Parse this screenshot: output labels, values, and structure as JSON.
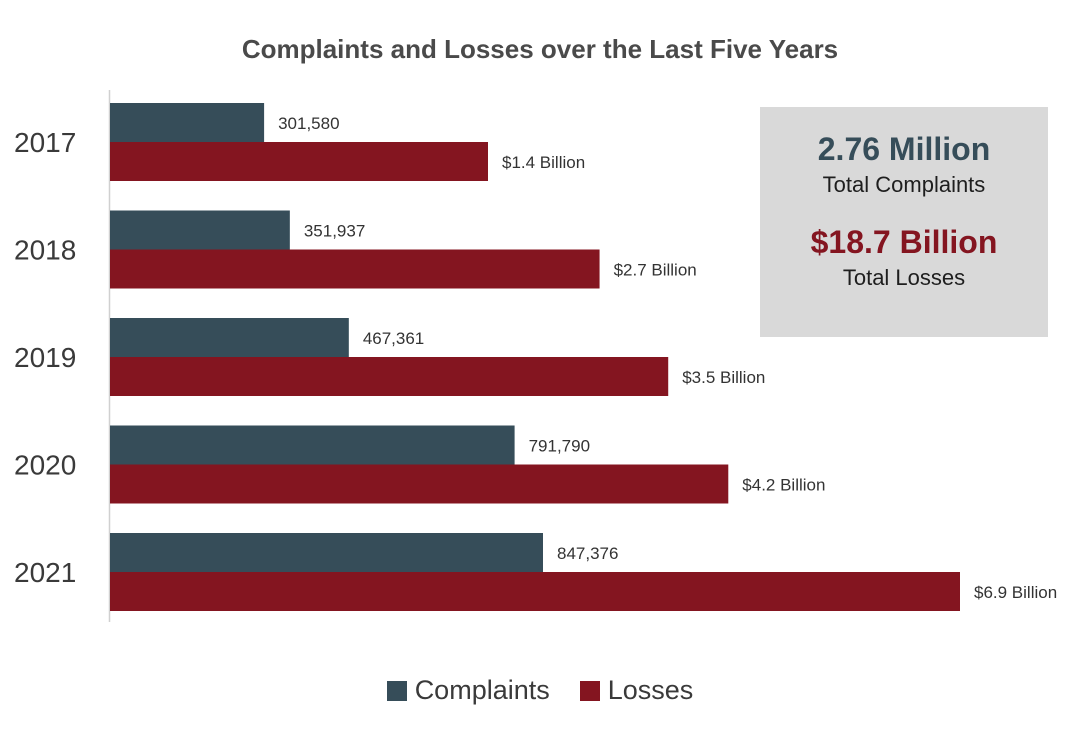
{
  "chart_data": {
    "type": "bar",
    "orientation": "horizontal",
    "title": "Complaints and Losses over the Last Five Years",
    "categories": [
      "2017",
      "2018",
      "2019",
      "2020",
      "2021"
    ],
    "series": [
      {
        "name": "Complaints",
        "values": [
          301580,
          351937,
          467361,
          791790,
          847376
        ],
        "labels": [
          "301,580",
          "351,937",
          "467,361",
          "791,790",
          "847,376"
        ],
        "color": "#364d59"
      },
      {
        "name": "Losses",
        "unit": "Billion USD",
        "values": [
          1.4,
          2.7,
          3.5,
          4.2,
          6.9
        ],
        "labels": [
          "$1.4 Billion",
          "$2.7 Billion",
          "$3.5 Billion",
          "$4.2 Billion",
          "$6.9 Billion"
        ],
        "color": "#841520"
      }
    ],
    "legend": "bottom",
    "grid": false,
    "xlabel": "",
    "ylabel": ""
  },
  "summary": {
    "complaints_value": "2.76 Million",
    "complaints_label": "Total Complaints",
    "losses_value": "$18.7 Billion",
    "losses_label": "Total Losses",
    "complaints_color": "#364d59",
    "losses_color": "#841520"
  }
}
